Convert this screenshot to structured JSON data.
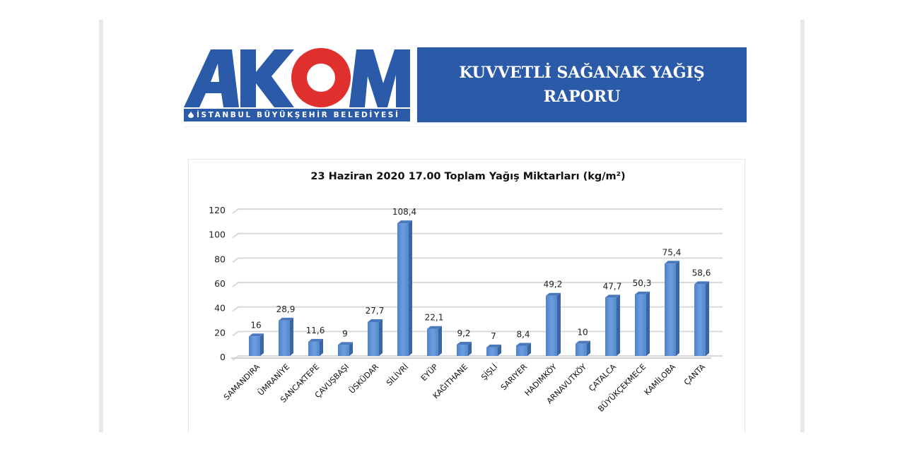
{
  "header": {
    "logo": {
      "letters": [
        "A",
        "K",
        "O",
        "M"
      ],
      "subtitle": "İSTANBUL BÜYÜKŞEHİR BELEDİYESİ",
      "colors": {
        "blue": "#2a5aa8",
        "red": "#e0302e"
      }
    },
    "title_line1": "KUVVETLİ SAĞANAK YAĞIŞ",
    "title_line2": "RAPORU",
    "box_color": "#2b5ba8"
  },
  "chart_data": {
    "type": "bar",
    "title": "23 Haziran 2020 17.00 Toplam Yağış Miktarları (kg/m²)",
    "xlabel": "",
    "ylabel": "",
    "ylim": [
      0,
      120
    ],
    "yticks": [
      0,
      20,
      40,
      60,
      80,
      100,
      120
    ],
    "grid": true,
    "legend": null,
    "bar_color": "#5b8fd4",
    "categories": [
      "SAMANDIRA",
      "ÜMRANİYE",
      "SANCAKTEPE",
      "ÇAVUŞBAŞI",
      "ÜSKÜDAR",
      "SİLİVRİ",
      "EYÜP",
      "KAĞITHANE",
      "ŞİŞLİ",
      "SARIYER",
      "HADIMKÖY",
      "ARNAVUTKÖY",
      "ÇATALCA",
      "BÜYÜKÇEKMECE",
      "KAMİLOBA",
      "ÇANTA"
    ],
    "values": [
      16,
      28.9,
      11.6,
      9,
      27.7,
      108.4,
      22.1,
      9.2,
      7,
      8.4,
      49.2,
      10,
      47.7,
      50.3,
      75.4,
      58.6
    ],
    "value_labels": [
      "16",
      "28,9",
      "11,6",
      "9",
      "27,7",
      "108,4",
      "22,1",
      "9,2",
      "7",
      "8,4",
      "49,2",
      "10",
      "47,7",
      "50,3",
      "75,4",
      "58,6"
    ]
  }
}
